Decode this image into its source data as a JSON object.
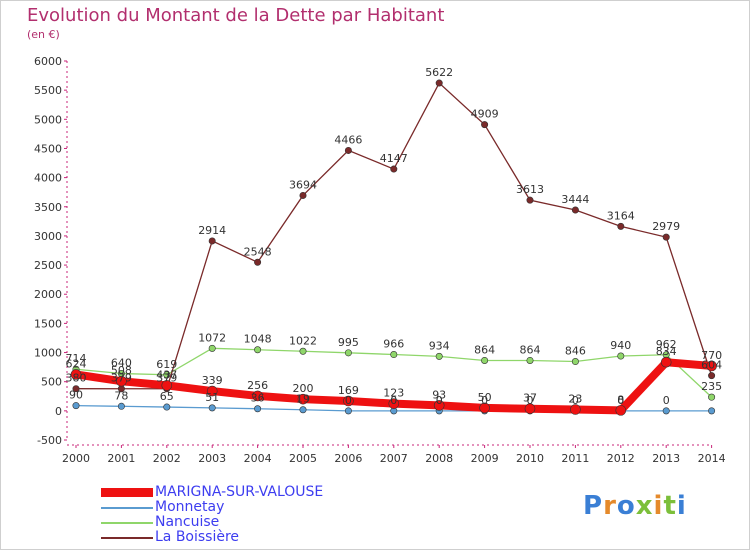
{
  "title": "Evolution du Montant de la Dette par Habitant",
  "subtitle": "(en €)",
  "logo": {
    "text": "Proxiti",
    "letters": [
      {
        "ch": "P",
        "color": "#3a7fd5"
      },
      {
        "ch": "r",
        "color": "#e58a2b"
      },
      {
        "ch": "o",
        "color": "#3a7fd5"
      },
      {
        "ch": "x",
        "color": "#7cbf3a"
      },
      {
        "ch": "i",
        "color": "#e58a2b"
      },
      {
        "ch": "t",
        "color": "#7cbf3a"
      },
      {
        "ch": "i",
        "color": "#3a7fd5"
      }
    ]
  },
  "chart_data": {
    "type": "line",
    "title": "Evolution du Montant de la Dette par Habitant",
    "ylabel": "(en €)",
    "xlabel": "",
    "categories": [
      "2000",
      "2001",
      "2002",
      "2003",
      "2004",
      "2005",
      "2006",
      "2007",
      "2008",
      "2009",
      "2010",
      "2011",
      "2012",
      "2013",
      "2014"
    ],
    "ylim": [
      -500,
      6000
    ],
    "yticks": [
      -500,
      0,
      500,
      1000,
      1500,
      2000,
      2500,
      3000,
      3500,
      4000,
      4500,
      5000,
      5500,
      6000
    ],
    "legend_position": "bottom-left",
    "series": [
      {
        "name": "MARIGNA-SUR-VALOUSE",
        "color": "#ee1111",
        "emphasis": true,
        "values": [
          624,
          508,
          437,
          339,
          256,
          200,
          169,
          123,
          93,
          50,
          37,
          23,
          8,
          834,
          770
        ],
        "labels": [
          "624",
          "508",
          "437",
          "339",
          "256",
          "200",
          "169",
          "123",
          "93",
          "50",
          "37",
          "23",
          "8",
          "834",
          "770"
        ]
      },
      {
        "name": "Monnetay",
        "color": "#5a9bd0",
        "values": [
          90,
          78,
          65,
          51,
          36,
          19,
          0,
          0,
          0,
          0,
          0,
          0,
          0,
          0,
          0
        ],
        "labels": [
          "90",
          "78",
          "65",
          "51",
          "36",
          "19",
          "0",
          "0",
          "0",
          "0",
          "0",
          "0",
          "0",
          "0",
          ""
        ]
      },
      {
        "name": "Nancuise",
        "color": "#8fd66a",
        "values": [
          714,
          640,
          619,
          1072,
          1048,
          1022,
          995,
          966,
          934,
          864,
          864,
          846,
          940,
          962,
          235
        ],
        "labels": [
          "714",
          "640",
          "619",
          "1072",
          "1048",
          "1022",
          "995",
          "966",
          "934",
          "864",
          "864",
          "846",
          "940",
          "962",
          "235"
        ]
      },
      {
        "name": "La Boissière",
        "color": "#7a2a2a",
        "values": [
          380,
          379,
          379,
          2914,
          2548,
          3694,
          4466,
          4147,
          5622,
          4909,
          3613,
          3444,
          3164,
          2979,
          604
        ],
        "labels": [
          "380",
          "379",
          "379",
          "2914",
          "2548",
          "3694",
          "4466",
          "4147",
          "5622",
          "4909",
          "3613",
          "3444",
          "3164",
          "2979",
          "604"
        ]
      }
    ]
  }
}
